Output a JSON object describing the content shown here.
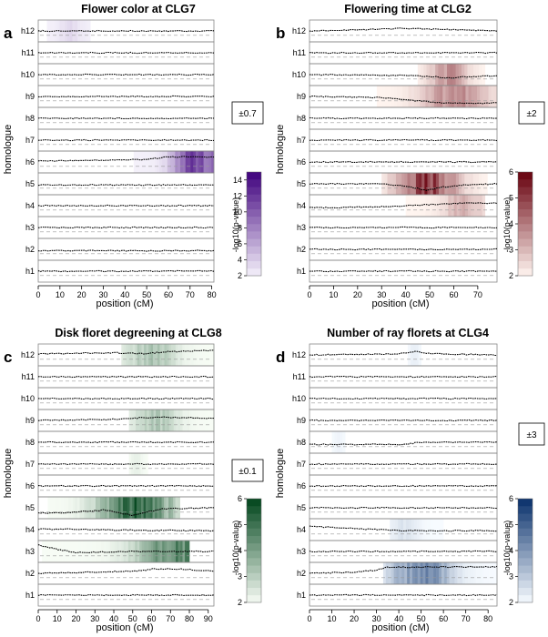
{
  "chart_data": [
    {
      "type": "heatmap",
      "panel_label": "a",
      "title": "Flower color at CLG7",
      "xlabel": "position (cM)",
      "ylabel": "homologue",
      "xlim": [
        0,
        81
      ],
      "xticks": [
        0,
        10,
        20,
        30,
        40,
        50,
        60,
        70,
        80
      ],
      "homologues": [
        "h1",
        "h2",
        "h3",
        "h4",
        "h5",
        "h6",
        "h7",
        "h8",
        "h9",
        "h10",
        "h11",
        "h12"
      ],
      "effect_label": "±0.7",
      "colorbar": {
        "label": "-log10(p-value)",
        "ticks": [
          2,
          4,
          6,
          8,
          10,
          12,
          14
        ],
        "range": [
          2,
          15
        ],
        "low_color": "#f4f1fa",
        "high_color": "#3f007d"
      },
      "signals": [
        {
          "homologue": "h6",
          "start": 44,
          "end": 81,
          "peak": 73,
          "max": 15
        },
        {
          "homologue": "h12",
          "start": 4,
          "end": 24,
          "peak": 15,
          "max": 3.5
        }
      ],
      "profiles": [
        {
          "homologue": "h6",
          "x": [
            0,
            30,
            50,
            58,
            66,
            74,
            81
          ],
          "dy": [
            -0.05,
            -0.08,
            -0.12,
            -0.22,
            -0.24,
            -0.23,
            -0.22
          ]
        },
        {
          "homologue": "h5",
          "x": [
            0,
            40,
            81
          ],
          "dy": [
            0.05,
            0.05,
            0.05
          ]
        },
        {
          "homologue": "h2",
          "x": [
            0,
            40,
            81
          ],
          "dy": [
            0.06,
            0.07,
            0.06
          ]
        }
      ]
    },
    {
      "type": "heatmap",
      "panel_label": "b",
      "title": "Flowering time at CLG2",
      "xlabel": "position (cM)",
      "ylabel": "homologue",
      "xlim": [
        0,
        78
      ],
      "xticks": [
        0,
        10,
        20,
        30,
        40,
        50,
        60,
        70
      ],
      "homologues": [
        "h1",
        "h2",
        "h3",
        "h4",
        "h5",
        "h6",
        "h7",
        "h8",
        "h9",
        "h10",
        "h11",
        "h12"
      ],
      "effect_label": "±2",
      "colorbar": {
        "label": "-log10(p-value)",
        "ticks": [
          2,
          3,
          4,
          5,
          6
        ],
        "range": [
          2,
          6
        ],
        "low_color": "#fff5f0",
        "high_color": "#67000d"
      },
      "signals": [
        {
          "homologue": "h9",
          "start": 28,
          "end": 78,
          "peak": 60,
          "max": 4.2
        },
        {
          "homologue": "h10",
          "start": 45,
          "end": 73,
          "peak": 58,
          "max": 4.0
        },
        {
          "homologue": "h5",
          "start": 30,
          "end": 74,
          "peak": 49,
          "max": 5.8
        },
        {
          "homologue": "h4",
          "start": 40,
          "end": 73,
          "peak": 64,
          "max": 3.4
        }
      ],
      "profiles": [
        {
          "homologue": "h12",
          "x": [
            0,
            20,
            40,
            60,
            78
          ],
          "dy": [
            0.0,
            -0.05,
            -0.12,
            -0.05,
            0.0
          ]
        },
        {
          "homologue": "h10",
          "x": [
            0,
            45,
            58,
            65,
            78
          ],
          "dy": [
            0.0,
            0.05,
            0.15,
            0.1,
            0.05
          ]
        },
        {
          "homologue": "h9",
          "x": [
            0,
            30,
            45,
            55,
            65,
            78
          ],
          "dy": [
            0.0,
            0.05,
            0.2,
            0.3,
            0.32,
            0.3
          ]
        },
        {
          "homologue": "h5",
          "x": [
            0,
            30,
            40,
            49,
            55,
            65,
            78
          ],
          "dy": [
            0.0,
            0.0,
            0.1,
            0.3,
            0.15,
            0.05,
            0.0
          ]
        },
        {
          "homologue": "h4",
          "x": [
            0,
            30,
            50,
            65,
            78
          ],
          "dy": [
            0.1,
            0.05,
            -0.05,
            -0.12,
            -0.12
          ]
        }
      ]
    },
    {
      "type": "heatmap",
      "panel_label": "c",
      "title": "Disk floret degreening at CLG8",
      "xlabel": "position (cM)",
      "ylabel": "homologue",
      "xlim": [
        0,
        93
      ],
      "xticks": [
        0,
        10,
        20,
        30,
        40,
        50,
        60,
        70,
        80,
        90
      ],
      "homologues": [
        "h1",
        "h2",
        "h3",
        "h4",
        "h5",
        "h6",
        "h7",
        "h8",
        "h9",
        "h10",
        "h11",
        "h12"
      ],
      "effect_label": "±0.1",
      "colorbar": {
        "label": "-log10(p-value)",
        "ticks": [
          2,
          3,
          4,
          5,
          6
        ],
        "range": [
          2,
          6
        ],
        "low_color": "#f7fcf5",
        "high_color": "#00441b"
      },
      "signals": [
        {
          "homologue": "h12",
          "start": 44,
          "end": 93,
          "peak": 60,
          "max": 3.5
        },
        {
          "homologue": "h9",
          "start": 48,
          "end": 93,
          "peak": 62,
          "max": 3.4
        },
        {
          "homologue": "h5",
          "start": 5,
          "end": 75,
          "peak": 52,
          "max": 6.0
        },
        {
          "homologue": "h3",
          "start": 2,
          "end": 80,
          "peak": 74,
          "max": 5.3
        },
        {
          "homologue": "h7",
          "start": 48,
          "end": 58,
          "peak": 52,
          "max": 2.4
        }
      ],
      "profiles": [
        {
          "homologue": "h12",
          "x": [
            0,
            40,
            55,
            70,
            93
          ],
          "dy": [
            -0.05,
            -0.1,
            -0.05,
            -0.15,
            -0.2
          ]
        },
        {
          "homologue": "h9",
          "x": [
            0,
            40,
            55,
            65,
            93
          ],
          "dy": [
            0.0,
            -0.05,
            -0.12,
            -0.15,
            -0.1
          ]
        },
        {
          "homologue": "h5",
          "x": [
            0,
            20,
            35,
            50,
            55,
            65,
            93
          ],
          "dy": [
            0.25,
            0.2,
            0.1,
            0.35,
            0.25,
            0.05,
            0.0
          ]
        },
        {
          "homologue": "h3",
          "x": [
            0,
            10,
            20,
            35,
            55,
            70,
            80,
            93
          ],
          "dy": [
            -0.3,
            -0.1,
            0.05,
            0.02,
            0.0,
            0.0,
            0.0,
            0.0
          ]
        },
        {
          "homologue": "h4",
          "x": [
            0,
            20,
            40,
            93
          ],
          "dy": [
            -0.02,
            -0.02,
            0.02,
            0.05
          ]
        },
        {
          "homologue": "h2",
          "x": [
            0,
            30,
            55,
            60,
            75,
            93
          ],
          "dy": [
            0.0,
            -0.05,
            -0.12,
            -0.2,
            -0.2,
            -0.1
          ]
        }
      ]
    },
    {
      "type": "heatmap",
      "panel_label": "d",
      "title": "Number of ray florets at CLG4",
      "xlabel": "position (cM)",
      "ylabel": "homologue",
      "xlim": [
        0,
        84
      ],
      "xticks": [
        0,
        10,
        20,
        30,
        40,
        50,
        60,
        70,
        80
      ],
      "homologues": [
        "h1",
        "h2",
        "h3",
        "h4",
        "h5",
        "h6",
        "h7",
        "h8",
        "h9",
        "h10",
        "h11",
        "h12"
      ],
      "effect_label": "±3",
      "colorbar": {
        "label": "-log10(p-value)",
        "ticks": [
          2,
          3,
          4,
          5,
          6
        ],
        "range": [
          2,
          6
        ],
        "low_color": "#f7fbff",
        "high_color": "#08306b"
      },
      "signals": [
        {
          "homologue": "h2",
          "start": 33,
          "end": 84,
          "peak": 50,
          "max": 4.8
        },
        {
          "homologue": "h4",
          "start": 36,
          "end": 60,
          "peak": 42,
          "max": 2.6
        },
        {
          "homologue": "h12",
          "start": 44,
          "end": 50,
          "peak": 47,
          "max": 2.3
        },
        {
          "homologue": "h8",
          "start": 10,
          "end": 16,
          "peak": 13,
          "max": 2.2
        }
      ],
      "profiles": [
        {
          "homologue": "h12",
          "x": [
            0,
            40,
            48,
            55,
            84
          ],
          "dy": [
            0.0,
            -0.05,
            -0.15,
            -0.05,
            0.0
          ]
        },
        {
          "homologue": "h8",
          "x": [
            0,
            44,
            48,
            84
          ],
          "dy": [
            0.1,
            0.1,
            0.0,
            0.0
          ]
        },
        {
          "homologue": "h4",
          "x": [
            0,
            30,
            40,
            84
          ],
          "dy": [
            -0.15,
            0.0,
            0.05,
            0.05
          ]
        },
        {
          "homologue": "h2",
          "x": [
            0,
            20,
            30,
            35,
            84
          ],
          "dy": [
            0.0,
            -0.05,
            -0.15,
            -0.28,
            -0.3
          ]
        }
      ]
    }
  ]
}
